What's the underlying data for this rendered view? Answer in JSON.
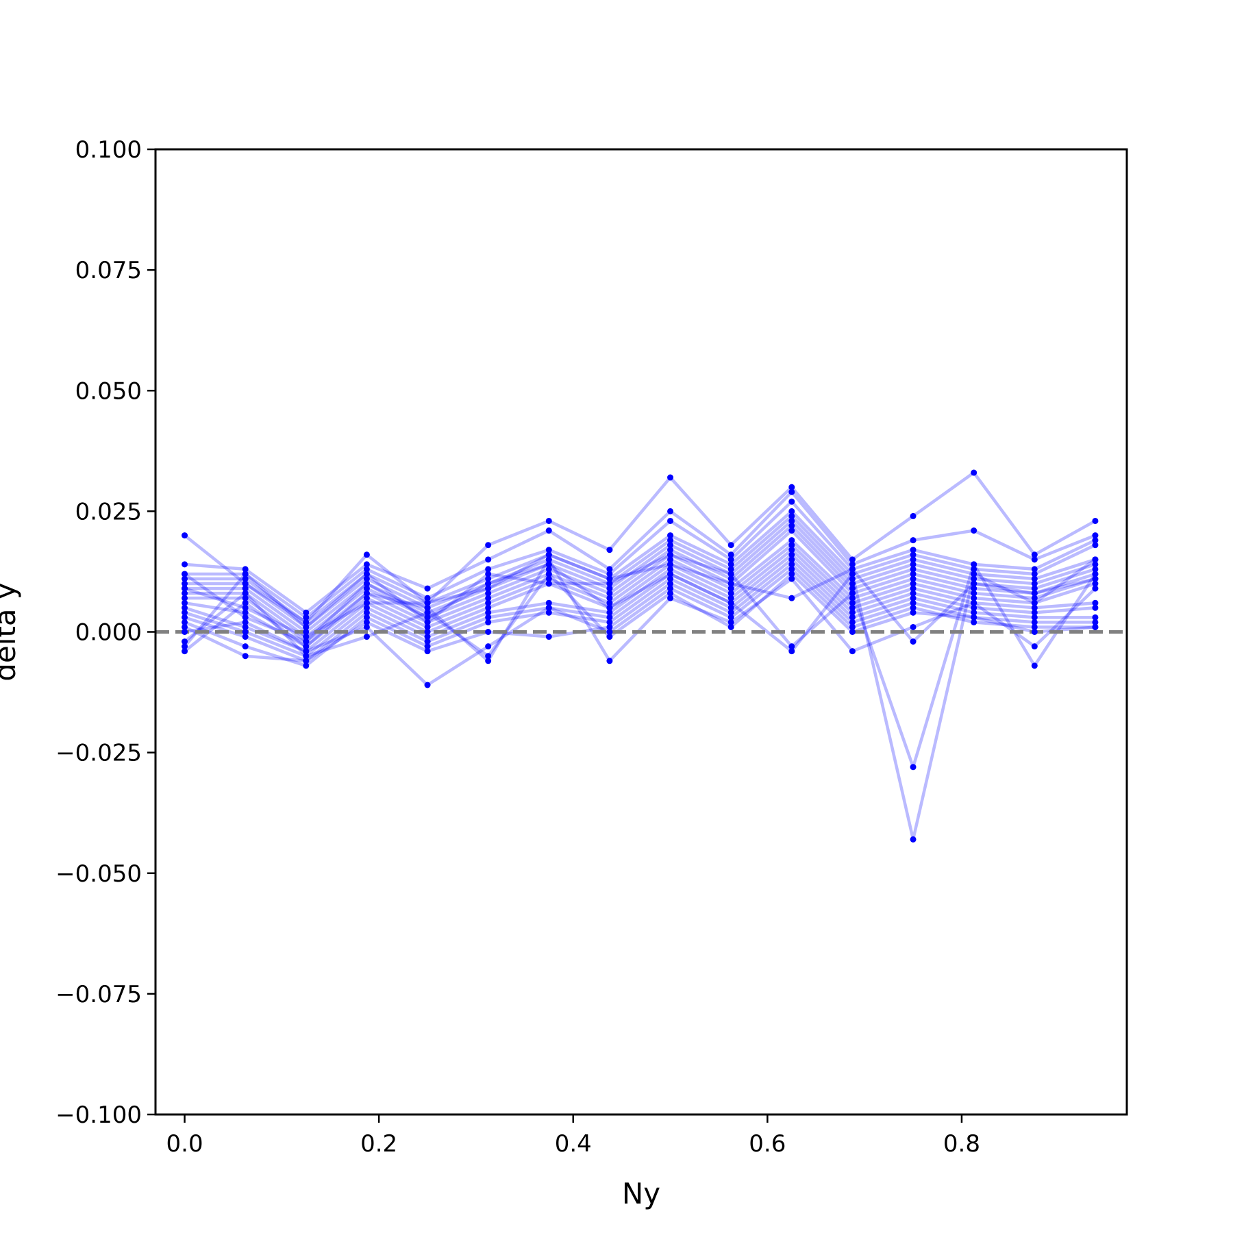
{
  "chart_data": {
    "type": "line",
    "title": "",
    "xlabel": "Ny",
    "ylabel": "delta y",
    "xlim": [
      -0.03,
      0.97
    ],
    "ylim": [
      -0.1,
      0.1
    ],
    "xticks": [
      0.0,
      0.2,
      0.4,
      0.6,
      0.8
    ],
    "xtick_labels": [
      "0.0",
      "0.2",
      "0.4",
      "0.6",
      "0.8"
    ],
    "yticks": [
      0.1,
      0.075,
      0.05,
      0.025,
      0.0,
      -0.025,
      -0.05,
      -0.075,
      -0.1
    ],
    "ytick_labels": [
      "0.100",
      "0.075",
      "0.050",
      "0.025",
      "0.000",
      "−0.025",
      "−0.050",
      "−0.075",
      "−0.100"
    ],
    "grid": false,
    "reference_line": {
      "y": 0.0,
      "style": "dashed",
      "color": "#808080"
    },
    "series_color": "#0000ff",
    "x": [
      0.0,
      0.0625,
      0.125,
      0.1875,
      0.25,
      0.3125,
      0.375,
      0.4375,
      0.5,
      0.5625,
      0.625,
      0.6875,
      0.75,
      0.8125,
      0.875,
      0.9375
    ],
    "series": [
      {
        "values": [
          0.02,
          0.01,
          0.002,
          0.016,
          0.006,
          0.018,
          0.023,
          0.017,
          0.032,
          0.018,
          0.03,
          0.015,
          0.024,
          0.033,
          0.016,
          0.023
        ]
      },
      {
        "values": [
          0.014,
          0.013,
          0.004,
          0.014,
          0.009,
          0.015,
          0.021,
          0.013,
          0.025,
          0.016,
          0.029,
          0.014,
          0.019,
          0.021,
          0.015,
          0.02
        ]
      },
      {
        "values": [
          0.012,
          0.012,
          0.003,
          0.013,
          0.007,
          0.013,
          0.017,
          0.012,
          0.023,
          0.015,
          0.027,
          0.013,
          0.017,
          0.014,
          0.013,
          0.019
        ]
      },
      {
        "values": [
          0.011,
          0.011,
          0.002,
          0.012,
          0.006,
          0.011,
          0.016,
          0.011,
          0.02,
          0.014,
          0.025,
          0.012,
          0.016,
          0.013,
          0.012,
          0.018
        ]
      },
      {
        "values": [
          0.01,
          0.01,
          0.001,
          0.011,
          0.005,
          0.01,
          0.015,
          0.01,
          0.019,
          0.013,
          0.024,
          0.011,
          0.015,
          0.012,
          0.011,
          0.015
        ]
      },
      {
        "values": [
          0.009,
          0.009,
          0.0,
          0.01,
          0.004,
          0.009,
          0.014,
          0.009,
          0.018,
          0.012,
          0.023,
          0.01,
          0.014,
          0.011,
          0.01,
          0.014
        ]
      },
      {
        "values": [
          0.008,
          0.008,
          -0.001,
          0.009,
          0.003,
          0.008,
          0.013,
          0.008,
          0.017,
          0.011,
          0.022,
          0.009,
          0.013,
          0.01,
          0.009,
          0.013
        ]
      },
      {
        "values": [
          0.007,
          0.007,
          -0.002,
          0.008,
          0.002,
          0.007,
          0.012,
          0.007,
          0.016,
          0.01,
          0.021,
          0.008,
          0.012,
          0.009,
          0.008,
          0.012
        ]
      },
      {
        "values": [
          0.006,
          0.004,
          -0.003,
          0.007,
          0.001,
          0.006,
          0.011,
          0.006,
          0.015,
          0.009,
          0.019,
          0.007,
          0.011,
          0.008,
          0.007,
          0.011
        ]
      },
      {
        "values": [
          0.005,
          0.001,
          -0.004,
          0.006,
          0.0,
          0.005,
          0.01,
          0.005,
          0.014,
          0.008,
          0.018,
          0.006,
          0.01,
          0.007,
          0.006,
          0.01
        ]
      },
      {
        "values": [
          0.004,
          0.0,
          -0.005,
          0.005,
          -0.001,
          0.004,
          0.006,
          0.004,
          0.013,
          0.007,
          0.017,
          0.005,
          0.009,
          0.006,
          0.005,
          0.006
        ]
      },
      {
        "values": [
          0.003,
          -0.001,
          -0.006,
          0.004,
          -0.002,
          0.003,
          0.005,
          0.003,
          0.012,
          0.006,
          0.016,
          0.004,
          0.008,
          0.005,
          0.004,
          0.005
        ]
      },
      {
        "values": [
          0.002,
          -0.003,
          -0.007,
          0.003,
          -0.003,
          0.002,
          0.004,
          0.002,
          0.011,
          0.005,
          0.015,
          0.003,
          0.007,
          0.004,
          0.003,
          0.003
        ]
      },
      {
        "values": [
          0.001,
          -0.005,
          -0.006,
          0.002,
          -0.004,
          0.0,
          -0.001,
          0.001,
          0.01,
          0.004,
          0.014,
          0.002,
          0.006,
          0.003,
          0.002,
          0.002
        ]
      },
      {
        "values": [
          0.0,
          0.002,
          -0.004,
          0.001,
          -0.011,
          -0.003,
          0.005,
          0.0,
          0.009,
          0.003,
          0.013,
          0.001,
          0.005,
          0.002,
          0.001,
          0.001
        ]
      },
      {
        "values": [
          -0.002,
          0.008,
          -0.005,
          -0.001,
          0.004,
          -0.005,
          0.012,
          -0.001,
          0.008,
          0.001,
          0.012,
          0.0,
          0.004,
          0.003,
          0.0,
          0.001
        ]
      },
      {
        "values": [
          -0.004,
          0.006,
          -0.003,
          0.008,
          0.005,
          -0.006,
          0.015,
          -0.006,
          0.007,
          0.002,
          0.011,
          -0.004,
          0.001,
          0.006,
          -0.003,
          0.009
        ]
      },
      {
        "values": [
          -0.003,
          0.012,
          0.001,
          0.012,
          0.002,
          0.012,
          0.01,
          0.01,
          0.016,
          0.012,
          -0.003,
          0.008,
          -0.028,
          0.014,
          -0.007,
          0.012
        ]
      },
      {
        "values": [
          0.012,
          0.003,
          -0.002,
          0.01,
          0.003,
          0.01,
          0.014,
          0.005,
          0.012,
          0.006,
          -0.004,
          0.012,
          -0.043,
          0.012,
          0.006,
          0.015
        ]
      },
      {
        "values": [
          0.009,
          0.005,
          -0.001,
          0.006,
          0.006,
          0.009,
          0.016,
          0.011,
          0.014,
          0.01,
          0.007,
          0.013,
          -0.002,
          0.01,
          0.008,
          0.011
        ]
      }
    ]
  }
}
